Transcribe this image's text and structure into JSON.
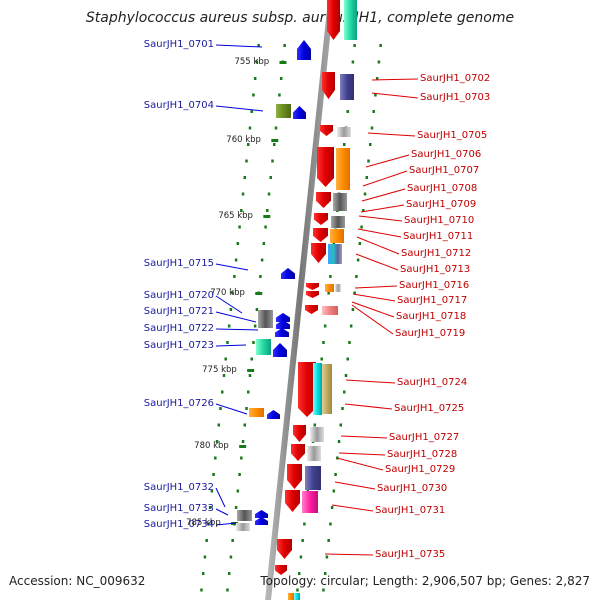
{
  "title": "Staphylococcus aureus subsp. aureus JH1, complete genome",
  "footer": {
    "accession": "Accession: NC_009632",
    "topology": "Topology: circular; Length: 2,906,507 bp; Genes: 2,827"
  },
  "scale_labels": [
    "755 kbp",
    "760 kbp",
    "765 kbp",
    "770 kbp",
    "775 kbp",
    "780 kbp",
    "785 kbp"
  ],
  "left_genes": [
    "SaurJH1_0701",
    "SaurJH1_0704",
    "SaurJH1_0715",
    "SaurJH1_0720",
    "SaurJH1_0721",
    "SaurJH1_0722",
    "SaurJH1_0723",
    "SaurJH1_0726",
    "SaurJH1_0732",
    "SaurJH1_0733",
    "SaurJH1_0734"
  ],
  "right_genes": [
    "SaurJH1_0702",
    "SaurJH1_0703",
    "SaurJH1_0705",
    "SaurJH1_0706",
    "SaurJH1_0707",
    "SaurJH1_0708",
    "SaurJH1_0709",
    "SaurJH1_0710",
    "SaurJH1_0711",
    "SaurJH1_0712",
    "SaurJH1_0713",
    "SaurJH1_0716",
    "SaurJH1_0717",
    "SaurJH1_0718",
    "SaurJH1_0719",
    "SaurJH1_0724",
    "SaurJH1_0725",
    "SaurJH1_0727",
    "SaurJH1_0728",
    "SaurJH1_0729",
    "SaurJH1_0730",
    "SaurJH1_0731",
    "SaurJH1_0735"
  ],
  "colors": {
    "forward_strand": "#e00000",
    "reverse_strand": "#0000e0",
    "backbone": "#888888",
    "ticks": "#1a7a1a"
  }
}
